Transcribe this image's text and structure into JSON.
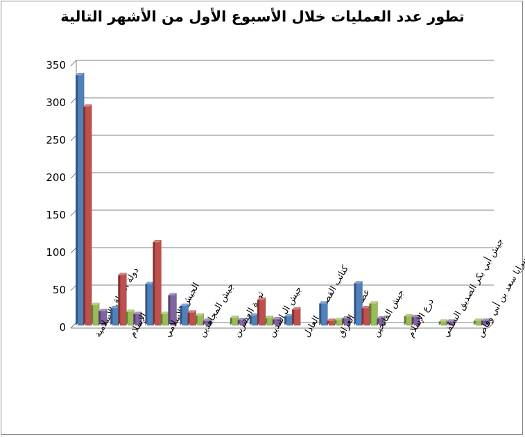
{
  "chart_data": {
    "type": "bar",
    "title": "تطور عدد العمليات خلال الأسبوع الأول من الأشهر التالية",
    "xlabel": "",
    "ylabel": "",
    "ylim": [
      0,
      350
    ],
    "yticks": [
      0,
      50,
      100,
      150,
      200,
      250,
      300,
      350
    ],
    "grid": true,
    "legend": "none",
    "categories": [
      "دولة العراق الإسلامية",
      "أنصار الإسلام",
      "الجيش الإسلامي",
      "جيش المجاهدين",
      "ثورة العشرين",
      "جيش الراشدين",
      "كتائب القصاص العادل",
      "عصائب العراق",
      "جيش الفاتحين",
      "درع الإسلام",
      "جيش أبي بكر الصديق السلفي",
      "سرايا سعد بن أبي وقاص"
    ],
    "series": [
      {
        "color": "#4f81bd",
        "values": [
          333,
          22,
          54,
          25,
          0,
          12,
          11,
          28,
          55,
          0,
          0,
          0
        ]
      },
      {
        "color": "#c0504d",
        "values": [
          291,
          66,
          110,
          16,
          0,
          33,
          20,
          5,
          22,
          0,
          0,
          0
        ]
      },
      {
        "color": "#9bbb59",
        "values": [
          26,
          17,
          14,
          12,
          9,
          9,
          0,
          6,
          28,
          11,
          4,
          5
        ]
      },
      {
        "color": "#8064a2",
        "values": [
          18,
          14,
          39,
          5,
          6,
          7,
          0,
          8,
          8,
          10,
          4,
          5
        ]
      }
    ]
  }
}
